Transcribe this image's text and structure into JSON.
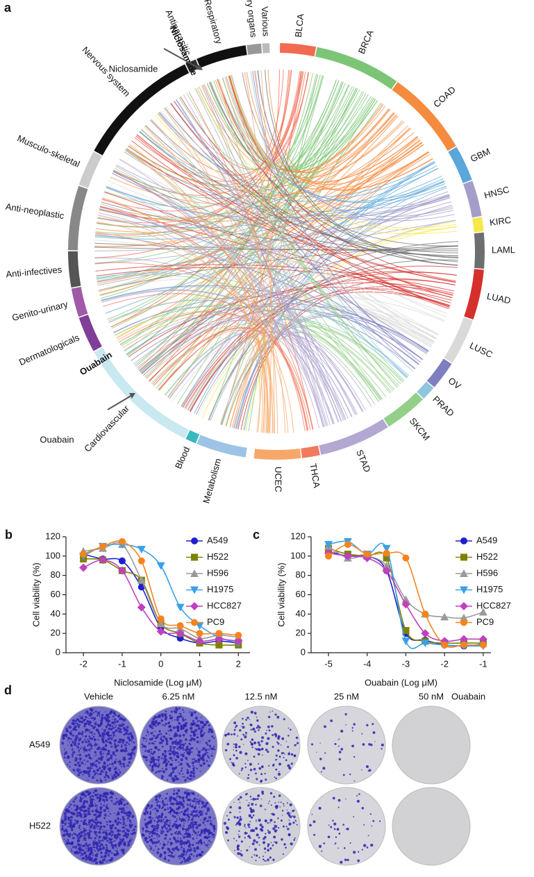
{
  "panels": {
    "a": "a",
    "d": "d"
  },
  "circos": {
    "cancers": [
      {
        "name": "BLCA",
        "color": "#f26a50",
        "size": 10
      },
      {
        "name": "BRCA",
        "color": "#7cc576",
        "size": 24
      },
      {
        "name": "COAD",
        "color": "#f58b3f",
        "size": 24
      },
      {
        "name": "GBM",
        "color": "#5ba7d9",
        "size": 10
      },
      {
        "name": "HNSC",
        "color": "#a49dc9",
        "size": 10
      },
      {
        "name": "KIRC",
        "color": "#f7e84a",
        "size": 4
      },
      {
        "name": "LAML",
        "color": "#6d6e70",
        "size": 10
      },
      {
        "name": "LUAD",
        "color": "#d6302c",
        "size": 14
      },
      {
        "name": "LUSC",
        "color": "#d9d9d9",
        "size": 13
      },
      {
        "name": "OV",
        "color": "#7f7fbf",
        "size": 8
      },
      {
        "name": "PRAD",
        "color": "#8ec6e0",
        "size": 4
      },
      {
        "name": "SKCM",
        "color": "#94cf8a",
        "size": 12
      },
      {
        "name": "STAD",
        "color": "#b2a8d1",
        "size": 20
      },
      {
        "name": "THCA",
        "color": "#f27a5e",
        "size": 5
      },
      {
        "name": "UCEC",
        "color": "#f7a868",
        "size": 13
      }
    ],
    "drug_classes": [
      {
        "name": "Metabolism",
        "color": "#9dc3e6",
        "size": 14
      },
      {
        "name": "Blood",
        "color": "#39b8c0",
        "size": 3
      },
      {
        "name": "Cardiovascular",
        "color": "#c9e8f0",
        "size": 35
      },
      {
        "name": "Dermatologicals",
        "color": "#7f3f98",
        "size": 10
      },
      {
        "name": "Genito-urinary",
        "color": "#a05aa8",
        "size": 8
      },
      {
        "name": "Anti-infectives",
        "color": "#555555",
        "size": 10
      },
      {
        "name": "Anti-neoplastic",
        "color": "#888888",
        "size": 18
      },
      {
        "name": "Musculo-skeletal",
        "color": "#cccccc",
        "size": 10
      },
      {
        "name": "Nervous system",
        "color": "#111111",
        "size": 35
      },
      {
        "name": "Antiparasitic",
        "color": "#333333",
        "size": 3
      },
      {
        "name": "Respiratory",
        "color": "#111111",
        "size": 14
      },
      {
        "name": "Sensory organs",
        "color": "#999999",
        "size": 4
      },
      {
        "name": "Various",
        "color": "#bbbbbb",
        "size": 2
      }
    ],
    "drug_labels": [
      "Niclosamide",
      "Ouabain"
    ],
    "structure_captions": [
      "Niclosamide",
      "Ouabain"
    ]
  },
  "chart_data": [
    {
      "type": "line",
      "panel_label": "b",
      "xlabel": "Niclosamide (Log μM)",
      "ylabel": "Cell viability (%)",
      "xlim": [
        -2.45,
        2.3
      ],
      "ylim": [
        0,
        120
      ],
      "xticks": [
        -2,
        -1,
        0,
        1,
        2
      ],
      "yticks": [
        0,
        20,
        40,
        60,
        80,
        100,
        120
      ],
      "x": [
        -2,
        -1.5,
        -1,
        -0.5,
        0,
        0.5,
        1,
        1.5,
        2
      ],
      "series": [
        {
          "name": "A549",
          "color": "#1f1fcf",
          "marker": "circle",
          "values": [
            102,
            97,
            95,
            68,
            26,
            15,
            10,
            12,
            10
          ]
        },
        {
          "name": "H522",
          "color": "#808000",
          "marker": "square",
          "values": [
            97,
            96,
            85,
            75,
            30,
            20,
            10,
            8,
            8
          ]
        },
        {
          "name": "H596",
          "color": "#9a9a9a",
          "marker": "triangle-up",
          "values": [
            105,
            108,
            112,
            75,
            30,
            25,
            15,
            18,
            16
          ]
        },
        {
          "name": "H1975",
          "color": "#3aa0e8",
          "marker": "triangle-down",
          "values": [
            100,
            110,
            112,
            107,
            90,
            47,
            28,
            16,
            10
          ]
        },
        {
          "name": "HCC827",
          "color": "#c040c0",
          "marker": "diamond",
          "values": [
            88,
            96,
            85,
            47,
            22,
            20,
            12,
            14,
            12
          ]
        },
        {
          "name": "PC9",
          "color": "#f5841f",
          "marker": "circle",
          "values": [
            102,
            110,
            115,
            95,
            35,
            28,
            20,
            20,
            18
          ]
        }
      ]
    },
    {
      "type": "line",
      "panel_label": "c",
      "xlabel": "Ouabain (Log μM)",
      "ylabel": "Cell viability (%)",
      "xlim": [
        -5.45,
        -0.8
      ],
      "ylim": [
        0,
        120
      ],
      "xticks": [
        -5,
        -4,
        -3,
        -2,
        -1
      ],
      "yticks": [
        0,
        20,
        40,
        60,
        80,
        100,
        120
      ],
      "x": [
        -5,
        -4.5,
        -4,
        -3.5,
        -3,
        -2.5,
        -2,
        -1.5,
        -1
      ],
      "series": [
        {
          "name": "A549",
          "color": "#1f1fcf",
          "marker": "circle",
          "values": [
            105,
            100,
            100,
            85,
            20,
            13,
            8,
            7,
            9
          ]
        },
        {
          "name": "H522",
          "color": "#808000",
          "marker": "square",
          "values": [
            108,
            102,
            100,
            98,
            23,
            12,
            10,
            10,
            10
          ]
        },
        {
          "name": "H596",
          "color": "#9a9a9a",
          "marker": "triangle-up",
          "values": [
            110,
            98,
            100,
            90,
            55,
            40,
            37,
            36,
            42
          ]
        },
        {
          "name": "H1975",
          "color": "#3aa0e8",
          "marker": "triangle-down",
          "values": [
            112,
            115,
            102,
            108,
            12,
            10,
            8,
            7,
            7
          ]
        },
        {
          "name": "HCC827",
          "color": "#c040c0",
          "marker": "diamond",
          "values": [
            103,
            100,
            98,
            85,
            50,
            20,
            12,
            14,
            14
          ]
        },
        {
          "name": "PC9",
          "color": "#f5841f",
          "marker": "circle",
          "values": [
            100,
            112,
            102,
            103,
            98,
            40,
            8,
            8,
            8
          ]
        }
      ]
    }
  ],
  "colony_assay": {
    "conditions": [
      "Vehicle",
      "6.25 nM",
      "12.5 nM",
      "25 nM",
      "50 nM"
    ],
    "drug": "Ouabain",
    "cell_lines": [
      "A549",
      "H522"
    ]
  }
}
